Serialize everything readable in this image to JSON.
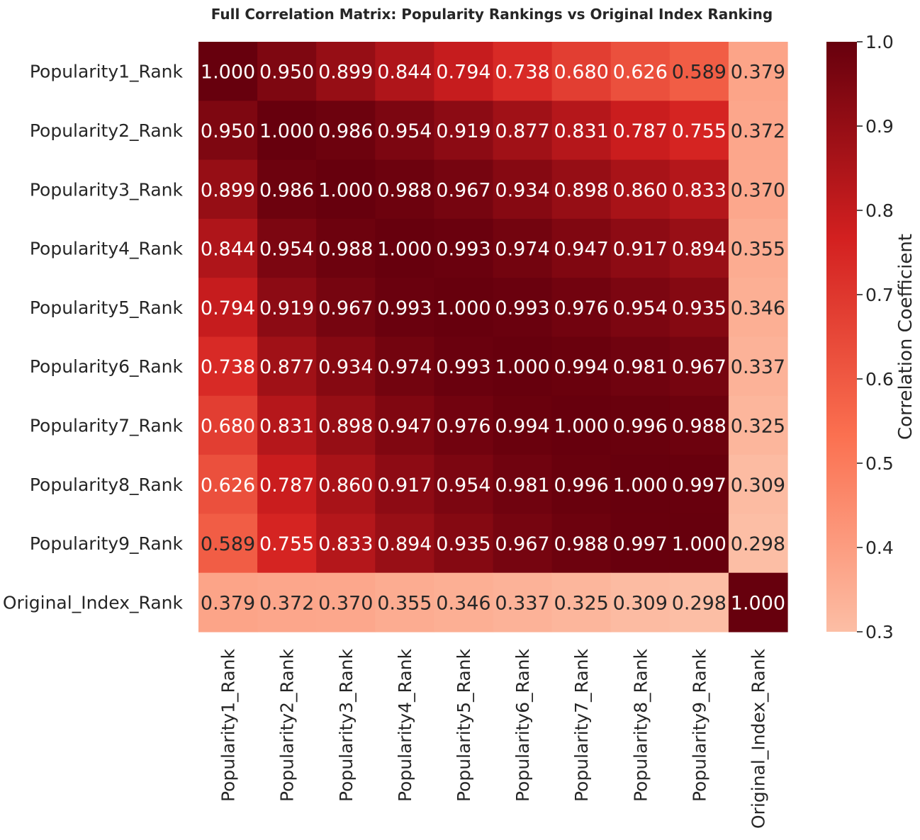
{
  "chart_data": {
    "type": "heatmap",
    "title": "Full Correlation Matrix: Popularity Rankings vs Original Index Ranking",
    "row_labels": [
      "Popularity1_Rank",
      "Popularity2_Rank",
      "Popularity3_Rank",
      "Popularity4_Rank",
      "Popularity5_Rank",
      "Popularity6_Rank",
      "Popularity7_Rank",
      "Popularity8_Rank",
      "Popularity9_Rank",
      "Original_Index_Rank"
    ],
    "col_labels": [
      "Popularity1_Rank",
      "Popularity2_Rank",
      "Popularity3_Rank",
      "Popularity4_Rank",
      "Popularity5_Rank",
      "Popularity6_Rank",
      "Popularity7_Rank",
      "Popularity8_Rank",
      "Popularity9_Rank",
      "Original_Index_Rank"
    ],
    "values": [
      [
        1.0,
        0.95,
        0.899,
        0.844,
        0.794,
        0.738,
        0.68,
        0.626,
        0.589,
        0.379
      ],
      [
        0.95,
        1.0,
        0.986,
        0.954,
        0.919,
        0.877,
        0.831,
        0.787,
        0.755,
        0.372
      ],
      [
        0.899,
        0.986,
        1.0,
        0.988,
        0.967,
        0.934,
        0.898,
        0.86,
        0.833,
        0.37
      ],
      [
        0.844,
        0.954,
        0.988,
        1.0,
        0.993,
        0.974,
        0.947,
        0.917,
        0.894,
        0.355
      ],
      [
        0.794,
        0.919,
        0.967,
        0.993,
        1.0,
        0.993,
        0.976,
        0.954,
        0.935,
        0.346
      ],
      [
        0.738,
        0.877,
        0.934,
        0.974,
        0.993,
        1.0,
        0.994,
        0.981,
        0.967,
        0.337
      ],
      [
        0.68,
        0.831,
        0.898,
        0.947,
        0.976,
        0.994,
        1.0,
        0.996,
        0.988,
        0.325
      ],
      [
        0.626,
        0.787,
        0.86,
        0.917,
        0.954,
        0.981,
        0.996,
        1.0,
        0.997,
        0.309
      ],
      [
        0.589,
        0.755,
        0.833,
        0.894,
        0.935,
        0.967,
        0.988,
        0.997,
        1.0,
        0.298
      ],
      [
        0.379,
        0.372,
        0.37,
        0.355,
        0.346,
        0.337,
        0.325,
        0.309,
        0.298,
        1.0
      ]
    ],
    "value_format": "0.000",
    "colormap": "Reds (light salmon to dark red)",
    "colormap_stops": [
      "#fcbea5",
      "#fb7050",
      "#d32020",
      "#67000d"
    ],
    "vmin": 0.3,
    "vmax": 1.0,
    "colorbar": {
      "label": "Correlation Coefficient",
      "ticks": [
        0.3,
        0.4,
        0.5,
        0.6,
        0.7,
        0.8,
        0.9,
        1.0
      ],
      "tick_labels": [
        "0.3",
        "0.4",
        "0.5",
        "0.6",
        "0.7",
        "0.8",
        "0.9",
        "1.0"
      ]
    }
  }
}
